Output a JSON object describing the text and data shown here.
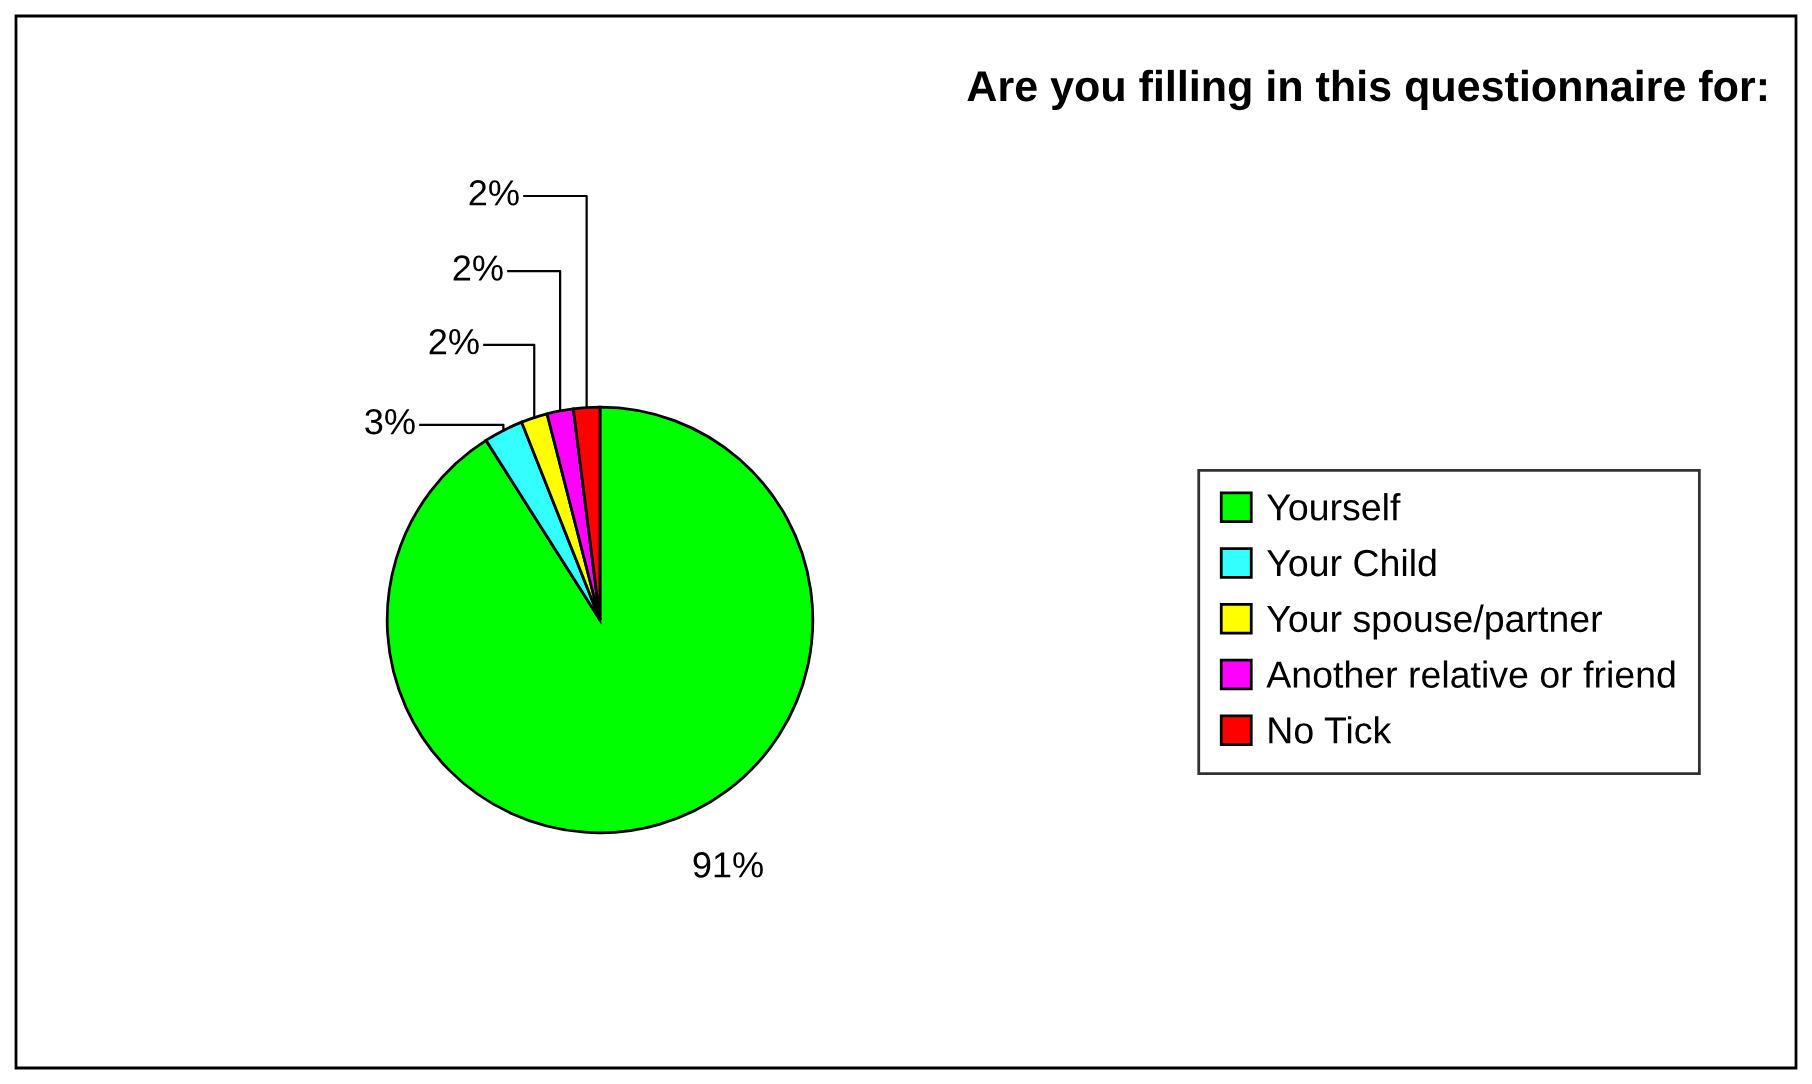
{
  "chart_data": {
    "type": "pie",
    "title": "Are you filling in this questionnaire for:",
    "categories": [
      "Yourself",
      "Your Child",
      "Your spouse/partner",
      "Another relative or friend",
      "No Tick"
    ],
    "values": [
      91,
      3,
      2,
      2,
      2
    ],
    "colors": [
      "#00ff00",
      "#33ffff",
      "#ffff00",
      "#ff00ff",
      "#ff0000"
    ],
    "value_labels": [
      "91%",
      "3%",
      "2%",
      "2%",
      "2%"
    ],
    "legend": "right"
  }
}
